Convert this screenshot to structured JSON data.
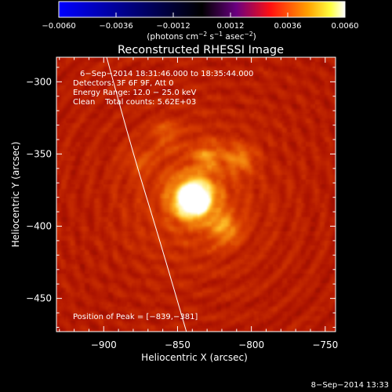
{
  "chart_data": {
    "type": "heatmap",
    "title": "Reconstructed RHESSI Image",
    "xlabel": "Heliocentric X (arcsec)",
    "ylabel": "Heliocentric Y (arcsec)",
    "xlim": [
      -932,
      -743
    ],
    "ylim": [
      -473,
      -283
    ],
    "x_ticks": [
      -900,
      -850,
      -800,
      -750
    ],
    "y_ticks": [
      -450,
      -400,
      -350,
      -300
    ],
    "x_tick_labels": [
      "−900",
      "−850",
      "−800",
      "−750"
    ],
    "y_tick_labels": [
      "−450",
      "−400",
      "−350",
      "−300"
    ],
    "colorbar": {
      "range": [
        -0.006,
        0.006
      ],
      "ticks": [
        -0.006,
        -0.0036,
        -0.0012,
        0.0012,
        0.0036,
        0.006
      ],
      "tick_labels": [
        "−0.0060",
        "−0.0036",
        "−0.0012",
        "0.0012",
        "0.0036",
        "0.0060"
      ],
      "label_main": "(photons cm",
      "label_exp1": "−2",
      "label_mid": " s",
      "label_exp2": "−1",
      "label_end": " asec",
      "label_exp3": "−2",
      "label_close": ")",
      "colors": [
        "#0000ff",
        "#000000",
        "#ff0000",
        "#ffff00",
        "#ffffff"
      ]
    },
    "peak": {
      "x": -839,
      "y": -381,
      "label": "Position of Peak = [−839,−381]"
    },
    "sources": [
      {
        "x": -839,
        "y": -381,
        "amplitude": 1.0
      },
      {
        "x": -818,
        "y": -402,
        "amplitude": 0.35
      },
      {
        "x": -808,
        "y": -353,
        "amplitude": 0.3
      },
      {
        "x": -830,
        "y": -352,
        "amplitude": 0.28
      },
      {
        "x": -858,
        "y": -336,
        "amplitude": 0.2
      },
      {
        "x": -876,
        "y": -355,
        "amplitude": 0.15
      }
    ],
    "limb_points": [
      [
        -898,
        -283
      ],
      [
        -880,
        -350
      ],
      [
        -862,
        -410
      ],
      [
        -844,
        -473
      ]
    ],
    "info_lines": [
      "6−Sep−2014 18:31:46.000 to 18:35:44.000",
      "Detectors: 3F 6F 9F, Att 0",
      "Energy Range: 12.0 − 25.0 keV",
      "Clean    Total counts: 5.62E+03"
    ],
    "footer_timestamp": "8−Sep−2014 13:33"
  }
}
